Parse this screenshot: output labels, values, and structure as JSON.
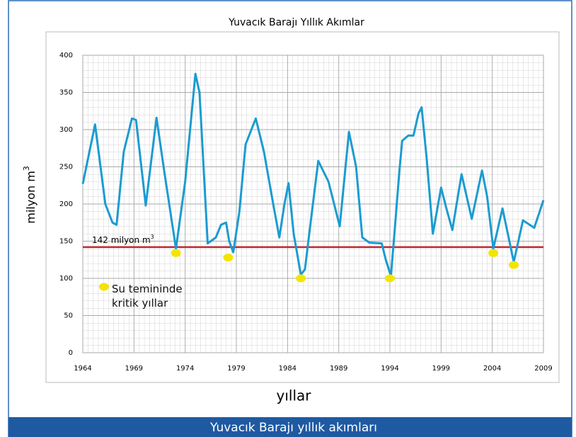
{
  "chart_data": {
    "type": "line",
    "title": "Yuvacık Barajı Yıllık Akımlar",
    "xlabel": "yıllar",
    "ylabel": {
      "text": "milyon m",
      "sup": "3"
    },
    "caption": "Yuvacık Barajı yıllık akımları",
    "xlim": [
      1964,
      2009
    ],
    "xticks": [
      1964,
      1969,
      1974,
      1979,
      1984,
      1989,
      1994,
      1999,
      2004,
      2009
    ],
    "ylim": [
      0,
      400
    ],
    "yticks": [
      0,
      50,
      100,
      150,
      200,
      250,
      300,
      350,
      400
    ],
    "grid": true,
    "series": [
      {
        "name": "akım",
        "color": "#1b9bd1",
        "x": [
          1964.0,
          1965.2,
          1966.2,
          1966.9,
          1967.3,
          1968.0,
          1968.8,
          1969.2,
          1970.15,
          1971.2,
          1972.0,
          1973.1,
          1974.0,
          1975.0,
          1975.4,
          1975.6,
          1976.2,
          1977.0,
          1977.5,
          1978.0,
          1978.3,
          1978.7,
          1979.3,
          1979.9,
          1980.9,
          1981.7,
          1982.6,
          1983.2,
          1983.7,
          1984.1,
          1984.6,
          1985.3,
          1985.7,
          1986.3,
          1987.0,
          1988.0,
          1989.1,
          1990.0,
          1990.7,
          1991.3,
          1992.0,
          1993.2,
          1993.6,
          1994.1,
          1994.5,
          1994.9,
          1995.2,
          1995.8,
          1996.3,
          1996.8,
          1997.1,
          1997.6,
          1998.2,
          1999.0,
          1999.5,
          2000.1,
          2001.0,
          2001.5,
          2002.0,
          2003.0,
          2003.5,
          2004.1,
          2005.0,
          2006.1,
          2007.0,
          2008.1,
          2009.0
        ],
        "values": [
          227,
          307,
          200,
          175,
          172,
          270,
          315,
          313,
          198,
          316,
          240,
          140,
          230,
          375,
          350,
          300,
          147,
          155,
          172,
          175,
          150,
          135,
          190,
          280,
          315,
          270,
          200,
          155,
          200,
          228,
          160,
          105,
          112,
          180,
          258,
          230,
          170,
          297,
          250,
          155,
          148,
          147,
          125,
          103,
          170,
          240,
          285,
          292,
          292,
          322,
          330,
          260,
          160,
          222,
          195,
          165,
          240,
          210,
          180,
          245,
          210,
          140,
          194,
          122,
          178,
          168,
          205
        ]
      },
      {
        "name": "Su temininde kritik yıllar",
        "color": "#f2e500",
        "type": "scatter",
        "x": [
          1973.1,
          1978.2,
          1985.3,
          1994.0,
          2004.1,
          2006.1
        ],
        "values": [
          134,
          128,
          100,
          100,
          134,
          118
        ]
      }
    ],
    "reference_line": {
      "value": 142,
      "color": "#c1272d",
      "label": "142 milyon m",
      "sup": "3"
    }
  }
}
